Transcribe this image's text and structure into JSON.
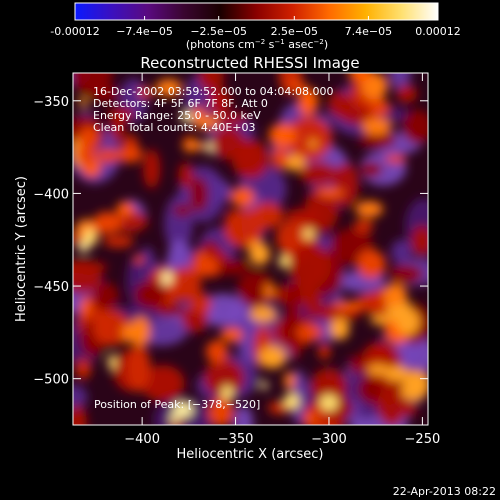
{
  "colorbar": {
    "ticks": [
      "-0.00012",
      "−7.4e−05",
      "−2.5e−05",
      "2.5e−05",
      "7.4e−05",
      "0.00012"
    ],
    "tick_values": [
      -0.00012,
      -7.4e-05,
      -2.5e-05,
      2.5e-05,
      7.4e-05,
      0.00012
    ],
    "units_prefix": "(photons cm",
    "units_exp1": "−2",
    "units_mid": " s",
    "units_exp2": "−1",
    "units_mid2": " asec",
    "units_exp3": "−2",
    "units_suffix": ")",
    "colors": [
      "#0a1aff",
      "#3a10c0",
      "#5a0a80",
      "#3a0530",
      "#1a0000",
      "#8a0000",
      "#d02000",
      "#ff6a00",
      "#ffb000",
      "#ffe070",
      "#ffffff"
    ]
  },
  "chart_data": {
    "type": "heatmap",
    "title": "Reconstructed RHESSI Image",
    "xlabel": "Heliocentric X (arcsec)",
    "ylabel": "Heliocentric Y (arcsec)",
    "xlim": [
      -437,
      -247
    ],
    "ylim": [
      -525,
      -335
    ],
    "x_ticks": [
      {
        "value": -400,
        "label": "−400"
      },
      {
        "value": -350,
        "label": "−350"
      },
      {
        "value": -300,
        "label": "−300"
      },
      {
        "value": -250,
        "label": "−250"
      }
    ],
    "y_ticks": [
      {
        "value": -350,
        "label": "−350"
      },
      {
        "value": -400,
        "label": "−400"
      },
      {
        "value": -450,
        "label": "−450"
      },
      {
        "value": -500,
        "label": "−500"
      }
    ],
    "peak_position": [
      -378,
      -520
    ],
    "annotations": [
      "16-Dec-2002 03:59:52.000 to 04:04:08.000",
      "Detectors: 4F 5F 6F 7F 8F, Att 0",
      "Energy Range: 25.0 - 50.0 keV",
      "Clean    Total counts: 4.40E+03"
    ],
    "peak_label": "Position of Peak: [−378,−520]"
  },
  "timestamp": "22-Apr-2013 08:22"
}
